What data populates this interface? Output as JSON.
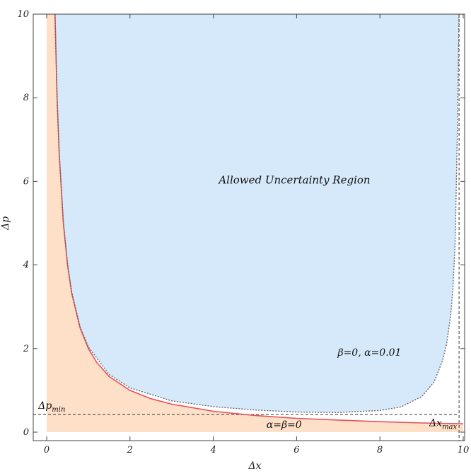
{
  "chart_data": {
    "type": "area",
    "xlabel": "Δx",
    "ylabel": "Δp",
    "xlim": [
      0,
      10
    ],
    "ylim": [
      0,
      10
    ],
    "xticks": [
      0,
      2,
      4,
      6,
      8,
      10
    ],
    "yticks": [
      0,
      2,
      4,
      6,
      8,
      10
    ],
    "grid": false,
    "colors": {
      "allowed_fill": "#d6e9fb",
      "forbidden_fill": "#fde0c7",
      "standard_curve": "#e8505a",
      "gup_curve": "#666666",
      "bounds": "#333333"
    },
    "series": [
      {
        "name": "α=β=0",
        "style": "solid",
        "x": [
          0.2,
          0.25,
          0.3,
          0.4,
          0.5,
          0.6,
          0.8,
          1.0,
          1.2,
          1.5,
          2.0,
          2.5,
          3.0,
          4.0,
          5.0,
          6.0,
          7.0,
          8.0,
          9.0,
          10.0
        ],
        "y": [
          10.0,
          8.0,
          6.67,
          5.0,
          4.0,
          3.33,
          2.5,
          2.0,
          1.67,
          1.33,
          1.0,
          0.8,
          0.67,
          0.5,
          0.4,
          0.33,
          0.29,
          0.25,
          0.22,
          0.2
        ]
      },
      {
        "name": "β=0, α=0.01",
        "style": "dotted",
        "x": [
          0.2,
          0.25,
          0.3,
          0.4,
          0.5,
          0.6,
          0.8,
          1.0,
          1.5,
          2.0,
          3.0,
          4.0,
          5.0,
          6.0,
          7.0,
          8.0,
          8.5,
          9.0,
          9.3,
          9.5,
          9.6,
          9.7,
          9.75,
          9.8,
          9.82,
          9.84,
          9.86,
          9.88,
          9.9
        ],
        "y": [
          10.0,
          8.0,
          6.68,
          5.02,
          4.02,
          3.36,
          2.53,
          2.04,
          1.38,
          1.06,
          0.75,
          0.61,
          0.53,
          0.48,
          0.47,
          0.52,
          0.6,
          0.85,
          1.2,
          1.7,
          2.1,
          2.8,
          3.4,
          4.4,
          5.2,
          6.2,
          7.3,
          8.6,
          10.0
        ]
      }
    ],
    "annotations": {
      "region_label": "Allowed Uncertainty Region",
      "gup_label": "β=0, α=0.01",
      "standard_label": "α=β=0",
      "dp_min_main": "Δp",
      "dp_min_sub": "min",
      "dx_max_main": "Δx",
      "dx_max_sub": "max",
      "dp_min_value": 0.42,
      "dx_max_value": 9.9
    }
  }
}
